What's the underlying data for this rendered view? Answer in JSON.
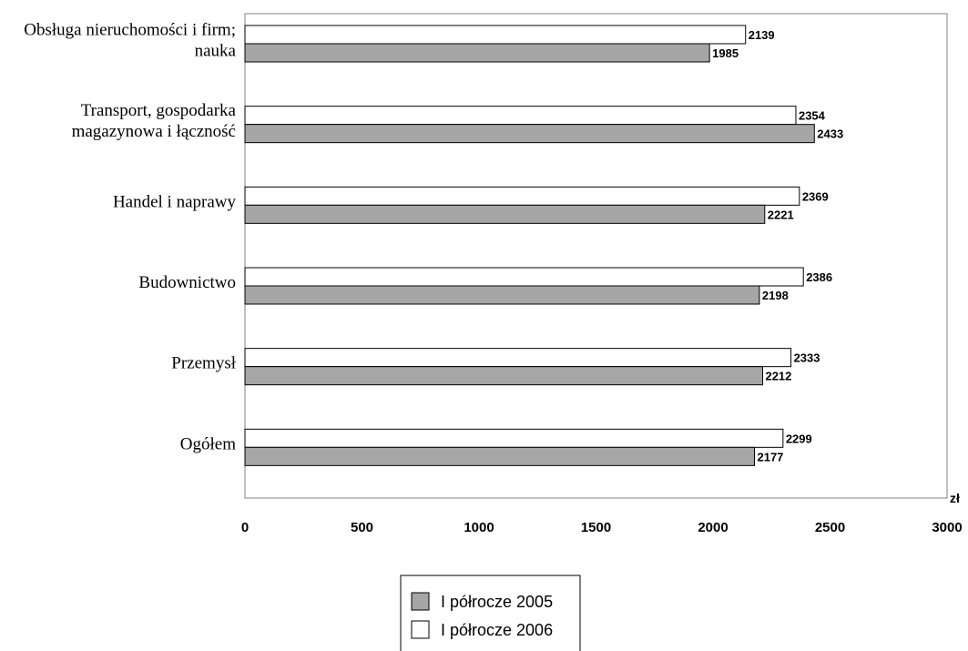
{
  "chart_data": {
    "type": "bar",
    "orientation": "horizontal",
    "categories": [
      [
        "Obsługa nieruchomości i firm;",
        "nauka"
      ],
      [
        "Transport, gospodarka",
        "magazynowa i łączność"
      ],
      [
        "Handel i naprawy"
      ],
      [
        "Budownictwo"
      ],
      [
        "Przemysł"
      ],
      [
        "Ogółem"
      ]
    ],
    "series": [
      {
        "name": "I półrocze 2006",
        "color": "#ffffff",
        "values": [
          2139,
          2354,
          2369,
          2386,
          2333,
          2299
        ]
      },
      {
        "name": "I półrocze 2005",
        "color": "#a6a6a6",
        "values": [
          1985,
          2433,
          2221,
          2198,
          2212,
          2177
        ]
      }
    ],
    "xlim": [
      0,
      3000
    ],
    "xticks": [
      "0",
      "500",
      "1000",
      "1500",
      "2000",
      "2500",
      "3000"
    ],
    "x_unit": "zł",
    "grid": false,
    "legend": {
      "placement": "bottom-center",
      "entries": [
        {
          "label": "I półrocze 2005",
          "color": "#a6a6a6"
        },
        {
          "label": "I półrocze 2006",
          "color": "#ffffff"
        }
      ]
    }
  }
}
